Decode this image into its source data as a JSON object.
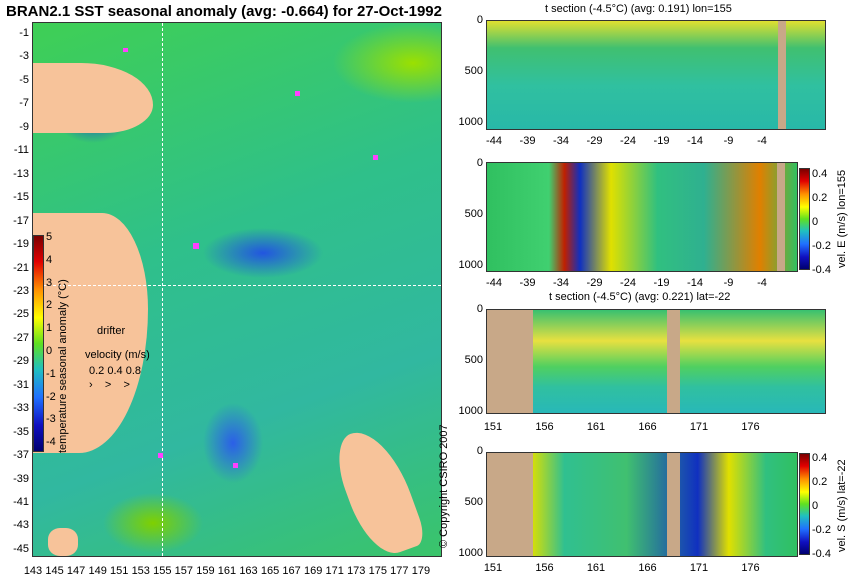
{
  "title": "BRAN2.1 SST seasonal anomaly (avg: -0.664) for 27-Oct-1992",
  "map": {
    "lat_ticks": [
      "-1",
      "-3",
      "-5",
      "-7",
      "-9",
      "-11",
      "-13",
      "-15",
      "-17",
      "-19",
      "-21",
      "-23",
      "-25",
      "-27",
      "-29",
      "-31",
      "-33",
      "-35",
      "-37",
      "-39",
      "-41",
      "-43",
      "-45"
    ],
    "lon_ticks": [
      "143",
      "145",
      "147",
      "149",
      "151",
      "153",
      "155",
      "157",
      "159",
      "161",
      "163",
      "165",
      "167",
      "169",
      "171",
      "173",
      "175",
      "177",
      "179"
    ],
    "colorbar_ticks": [
      "5",
      "4",
      "3",
      "2",
      "1",
      "0",
      "-1",
      "-2",
      "-3",
      "-4"
    ],
    "colorbar_label": "temperature seasonal anomaly (°C)",
    "drifter_label": "drifter",
    "velocity_label": "velocity (m/s)",
    "velocity_values": "0.2 0.4 0.8"
  },
  "panel1": {
    "title": "t section (-4.5°C) (avg: 0.191) lon=155",
    "x_ticks": [
      "-44",
      "-39",
      "-34",
      "-29",
      "-24",
      "-19",
      "-14",
      "-9",
      "-4"
    ],
    "y_ticks": [
      "0",
      "500",
      "1000"
    ]
  },
  "panel2": {
    "x_ticks": [
      "-44",
      "-39",
      "-34",
      "-29",
      "-24",
      "-19",
      "-14",
      "-9",
      "-4"
    ],
    "y_ticks": [
      "0",
      "500",
      "1000"
    ],
    "cbar_ticks": [
      "0.4",
      "0.2",
      "0",
      "-0.2",
      "-0.4"
    ],
    "cbar_label": "vel. E (m/s) lon=155"
  },
  "panel3": {
    "title": "t section (-4.5°C) (avg: 0.221) lat=-22",
    "x_ticks": [
      "151",
      "156",
      "161",
      "166",
      "171",
      "176"
    ],
    "y_ticks": [
      "0",
      "500",
      "1000"
    ]
  },
  "panel4": {
    "x_ticks": [
      "151",
      "156",
      "161",
      "166",
      "171",
      "176"
    ],
    "y_ticks": [
      "0",
      "500",
      "1000"
    ],
    "cbar_ticks": [
      "0.4",
      "0.2",
      "0",
      "-0.2",
      "-0.4"
    ],
    "cbar_label": "vel. S (m/s) lat=-22"
  },
  "copyright": "© Copyright CSIRO 2007",
  "colors": {
    "land": "#f7c39a",
    "mask": "#c8a888",
    "drifter": "#ff40ff"
  }
}
